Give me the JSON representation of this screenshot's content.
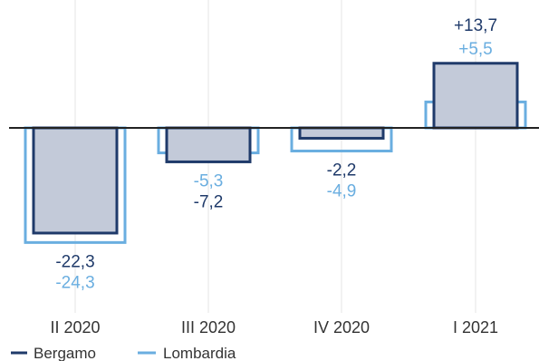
{
  "chart_data": {
    "type": "bar",
    "categories": [
      "II 2020",
      "III 2020",
      "IV 2020",
      "I 2021"
    ],
    "series": [
      {
        "name": "Bergamo",
        "values": [
          -22.3,
          -7.2,
          -2.2,
          13.7
        ],
        "labels": [
          "-22,3",
          "-7,2",
          "-2,2",
          "+13,7"
        ],
        "color": "#1f3a6a",
        "fill": "#c3cad9"
      },
      {
        "name": "Lombardia",
        "values": [
          -24.3,
          -5.3,
          -4.9,
          5.5
        ],
        "labels": [
          "-24,3",
          "-5,3",
          "-4,9",
          "+5,5"
        ],
        "color": "#6aaee0"
      }
    ],
    "grid": true,
    "legend": "bottom-left"
  }
}
